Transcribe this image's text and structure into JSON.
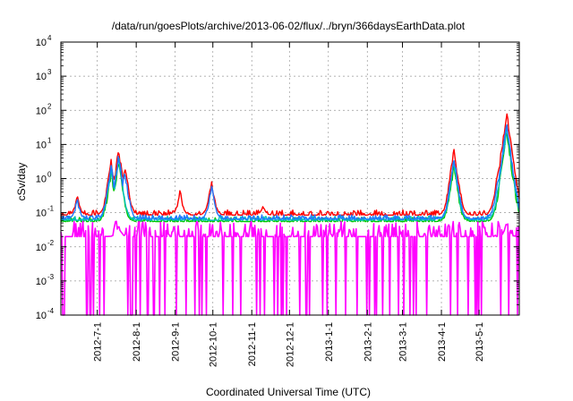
{
  "chart_data": {
    "type": "line",
    "title": "/data/run/goesPlots/archive/2013-06-02/flux/../bryn/366daysEarthData.plot",
    "xlabel": "Coordinated Universal Time (UTC)",
    "ylabel": "cSv/day",
    "yscale": "log",
    "ylim": [
      0.0001,
      10000
    ],
    "xlim": [
      "2012-06-02",
      "2013-06-02"
    ],
    "grid": true,
    "legend": "none",
    "y_ticks": [
      {
        "value": 0.0001,
        "base": "10",
        "exp": "-4"
      },
      {
        "value": 0.001,
        "base": "10",
        "exp": "-3"
      },
      {
        "value": 0.01,
        "base": "10",
        "exp": "-2"
      },
      {
        "value": 0.1,
        "base": "10",
        "exp": "-1"
      },
      {
        "value": 1,
        "base": "10",
        "exp": "0"
      },
      {
        "value": 10,
        "base": "10",
        "exp": "1"
      },
      {
        "value": 100,
        "base": "10",
        "exp": "2"
      },
      {
        "value": 1000,
        "base": "10",
        "exp": "3"
      },
      {
        "value": 10000,
        "base": "10",
        "exp": "4"
      }
    ],
    "x_ticks": [
      {
        "date": "2012-07-01",
        "label": "2012-7-1"
      },
      {
        "date": "2012-08-01",
        "label": "2012-8-1"
      },
      {
        "date": "2012-09-01",
        "label": "2012-9-1"
      },
      {
        "date": "2012-10-01",
        "label": "2012-10-1"
      },
      {
        "date": "2012-11-01",
        "label": "2012-11-1"
      },
      {
        "date": "2012-12-01",
        "label": "2012-12-1"
      },
      {
        "date": "2013-01-01",
        "label": "2013-1-1"
      },
      {
        "date": "2013-02-01",
        "label": "2013-2-1"
      },
      {
        "date": "2013-03-01",
        "label": "2013-3-1"
      },
      {
        "date": "2013-04-01",
        "label": "2013-4-1"
      },
      {
        "date": "2013-05-01",
        "label": "2013-5-1"
      }
    ],
    "series": [
      {
        "color": "#ff0000",
        "baseline": 0.085,
        "noise": 0.3,
        "peaks": [
          {
            "date": "2012-06-15",
            "value": 0.35
          },
          {
            "date": "2012-07-12",
            "value": 4
          },
          {
            "date": "2012-07-18",
            "value": 9
          },
          {
            "date": "2012-07-23",
            "value": 3
          },
          {
            "date": "2012-09-05",
            "value": 0.5
          },
          {
            "date": "2012-09-30",
            "value": 1
          },
          {
            "date": "2012-11-10",
            "value": 0.18
          },
          {
            "date": "2013-04-11",
            "value": 9
          },
          {
            "date": "2013-05-16",
            "value": 2
          },
          {
            "date": "2013-05-23",
            "value": 110
          }
        ]
      },
      {
        "color": "#00c800",
        "baseline": 0.055,
        "noise": 0.25,
        "peaks": [
          {
            "date": "2012-07-12",
            "value": 2
          },
          {
            "date": "2012-07-18",
            "value": 4
          },
          {
            "date": "2013-04-11",
            "value": 3
          },
          {
            "date": "2013-05-23",
            "value": 30
          }
        ]
      },
      {
        "color": "#00c0c0",
        "baseline": 0.06,
        "noise": 0.25,
        "peaks": [
          {
            "date": "2012-07-12",
            "value": 2.5
          },
          {
            "date": "2012-07-18",
            "value": 5
          },
          {
            "date": "2013-04-11",
            "value": 4
          },
          {
            "date": "2013-05-23",
            "value": 40
          }
        ]
      },
      {
        "color": "#2078ff",
        "baseline": 0.065,
        "noise": 0.25,
        "peaks": [
          {
            "date": "2012-06-15",
            "value": 0.3
          },
          {
            "date": "2012-07-12",
            "value": 3
          },
          {
            "date": "2012-07-18",
            "value": 6
          },
          {
            "date": "2012-07-23",
            "value": 2
          },
          {
            "date": "2012-09-30",
            "value": 0.7
          },
          {
            "date": "2013-04-11",
            "value": 5
          },
          {
            "date": "2013-05-16",
            "value": 1.2
          },
          {
            "date": "2013-05-23",
            "value": 50
          }
        ]
      },
      {
        "color": "#ff00ff",
        "baseline": 0.02,
        "noise": 0.9,
        "dropouts_to": 0.0001,
        "peaks": [
          {
            "date": "2012-07-18",
            "value": 0.05
          },
          {
            "date": "2013-05-23",
            "value": 0.06
          }
        ]
      }
    ]
  }
}
